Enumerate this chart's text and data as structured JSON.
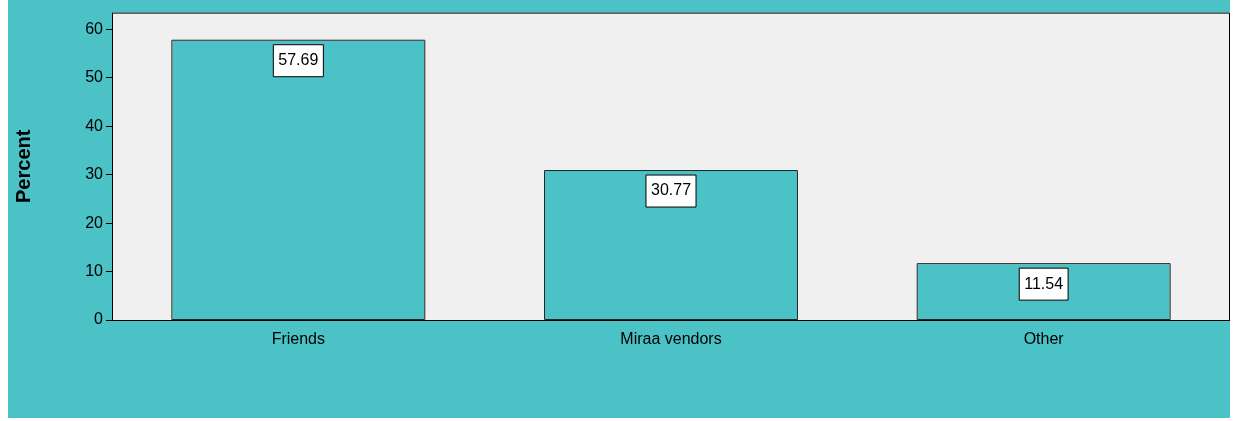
{
  "chart_data": {
    "type": "bar",
    "categories": [
      "Friends",
      "Miraa vendors",
      "Other"
    ],
    "values": [
      57.69,
      30.77,
      11.54
    ],
    "color": "#4bc2c5",
    "ylabel": "Percent",
    "ylim": [
      0,
      63.5
    ],
    "yticks": [
      0,
      10,
      20,
      30,
      40,
      50,
      60
    ],
    "data_labels": true,
    "grid": false
  }
}
